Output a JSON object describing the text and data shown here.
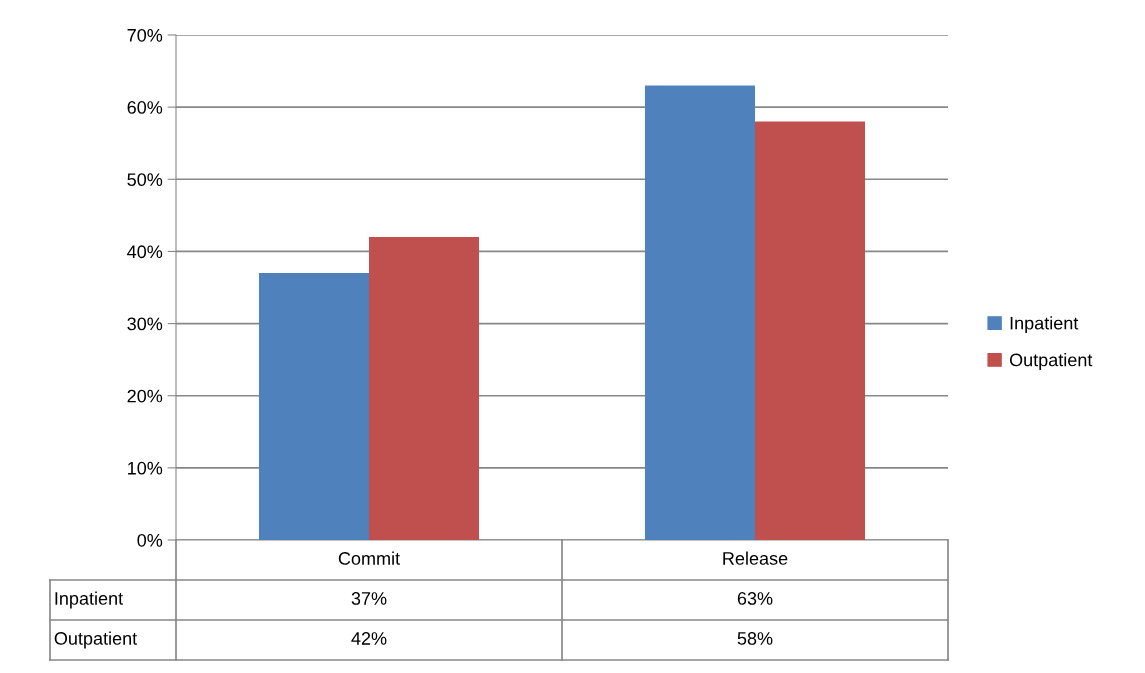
{
  "chart_data": {
    "type": "bar",
    "categories": [
      "Commit",
      "Release"
    ],
    "series": [
      {
        "name": "Inpatient",
        "color": "#4f81bd",
        "values": [
          37,
          63
        ],
        "value_labels": [
          "37%",
          "63%"
        ]
      },
      {
        "name": "Outpatient",
        "color": "#c0504d",
        "values": [
          42,
          58
        ],
        "value_labels": [
          "42%",
          "58%"
        ]
      }
    ],
    "ylim": [
      0,
      70
    ],
    "yticks": [
      {
        "value": 0,
        "label": "0%"
      },
      {
        "value": 10,
        "label": "10%"
      },
      {
        "value": 20,
        "label": "20%"
      },
      {
        "value": 30,
        "label": "30%"
      },
      {
        "value": 40,
        "label": "40%"
      },
      {
        "value": 50,
        "label": "50%"
      },
      {
        "value": 60,
        "label": "60%"
      },
      {
        "value": 70,
        "label": "70%"
      }
    ],
    "grid": "y",
    "legend": "right"
  }
}
